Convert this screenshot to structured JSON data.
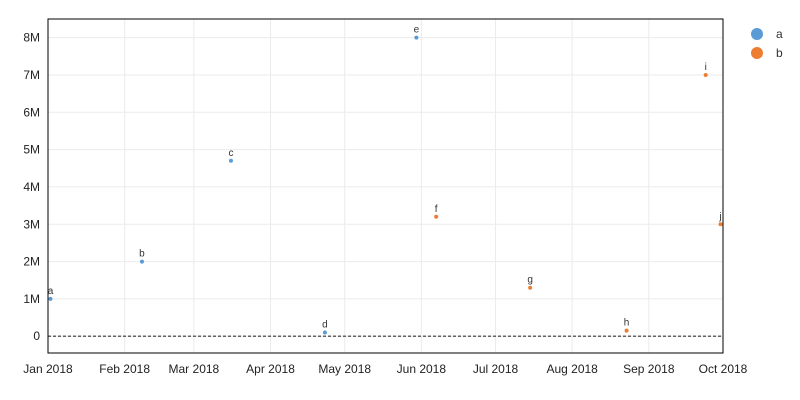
{
  "chart_data": {
    "type": "scatter",
    "x_axis": {
      "ticks": [
        "Jan 2018",
        "Feb 2018",
        "Mar 2018",
        "Apr 2018",
        "May 2018",
        "Jun 2018",
        "Jul 2018",
        "Aug 2018",
        "Sep 2018",
        "Oct 2018"
      ],
      "range": [
        "2018-01-01",
        "2018-10-01"
      ]
    },
    "y_axis": {
      "ticks": [
        "0",
        "1M",
        "2M",
        "3M",
        "4M",
        "5M",
        "6M",
        "7M",
        "8M"
      ],
      "range": [
        -450000,
        8500000
      ]
    },
    "grid": true,
    "zero_line": "dashed",
    "legend": {
      "position": "right",
      "entries": [
        "a",
        "b"
      ]
    },
    "series": [
      {
        "name": "a",
        "color": "#5b9bd5",
        "points": [
          {
            "label": "a",
            "x": "2018-01-02",
            "y": 1000000
          },
          {
            "label": "b",
            "x": "2018-02-08",
            "y": 2000000
          },
          {
            "label": "c",
            "x": "2018-03-16",
            "y": 4700000
          },
          {
            "label": "d",
            "x": "2018-04-23",
            "y": 100000
          },
          {
            "label": "e",
            "x": "2018-05-30",
            "y": 8000000
          }
        ]
      },
      {
        "name": "b",
        "color": "#ed7d31",
        "points": [
          {
            "label": "f",
            "x": "2018-06-07",
            "y": 3200000
          },
          {
            "label": "g",
            "x": "2018-07-15",
            "y": 1300000
          },
          {
            "label": "h",
            "x": "2018-08-23",
            "y": 150000
          },
          {
            "label": "i",
            "x": "2018-09-24",
            "y": 7000000
          },
          {
            "label": "j",
            "x": "2018-09-30",
            "y": 3000000
          }
        ]
      }
    ]
  }
}
